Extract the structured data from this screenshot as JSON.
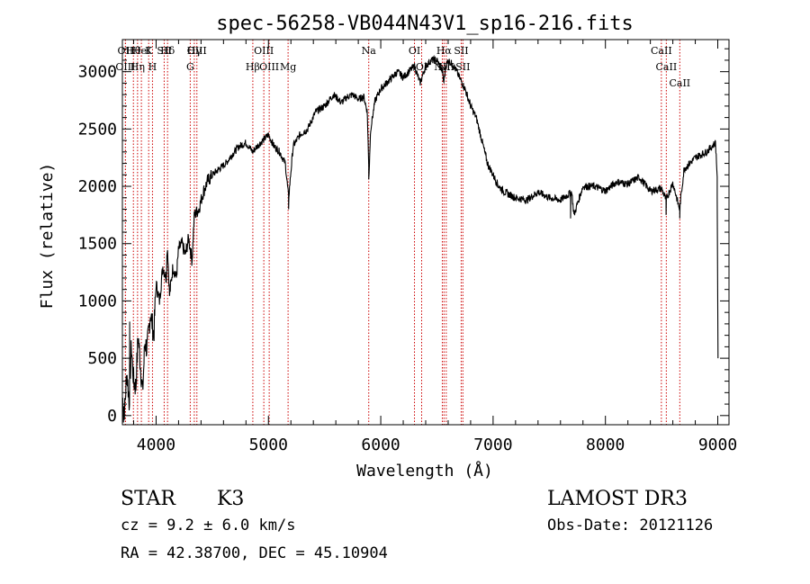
{
  "chart_data": {
    "type": "line",
    "title": "spec-56258-VB044N43V1_sp16-216.fits",
    "xlabel": "Wavelength (Å)",
    "ylabel": "Flux (relative)",
    "xlim": [
      3700,
      9100
    ],
    "ylim": [
      -80,
      3280
    ],
    "x_ticks": [
      4000,
      5000,
      6000,
      7000,
      8000,
      9000
    ],
    "x_tick_labels": [
      "4000",
      "5000",
      "6000",
      "7000",
      "8000",
      "9000"
    ],
    "y_ticks": [
      0,
      500,
      1000,
      1500,
      2000,
      2500,
      3000
    ],
    "y_tick_labels": [
      "0",
      "500",
      "1000",
      "1500",
      "2000",
      "2500",
      "3000"
    ],
    "series": [
      {
        "name": "spectrum",
        "color": "#000000",
        "x": [
          3700,
          3720,
          3740,
          3760,
          3780,
          3800,
          3820,
          3840,
          3860,
          3880,
          3900,
          3920,
          3950,
          3980,
          4000,
          4030,
          4060,
          4090,
          4100,
          4120,
          4150,
          4180,
          4200,
          4230,
          4260,
          4290,
          4320,
          4340,
          4380,
          4420,
          4460,
          4500,
          4560,
          4620,
          4680,
          4740,
          4800,
          4860,
          4900,
          4950,
          5000,
          5050,
          5100,
          5150,
          5180,
          5220,
          5280,
          5350,
          5420,
          5500,
          5580,
          5650,
          5700,
          5750,
          5800,
          5850,
          5880,
          5895,
          5910,
          5950,
          6000,
          6050,
          6100,
          6150,
          6200,
          6250,
          6300,
          6350,
          6400,
          6450,
          6500,
          6550,
          6560,
          6580,
          6600,
          6650,
          6700,
          6750,
          6800,
          6850,
          6900,
          6950,
          7000,
          7050,
          7100,
          7200,
          7300,
          7400,
          7500,
          7600,
          7700,
          7720,
          7800,
          7900,
          8000,
          8100,
          8200,
          8300,
          8400,
          8500,
          8540,
          8600,
          8660,
          8700,
          8800,
          8900,
          8980,
          9000
        ],
        "y": [
          150,
          50,
          380,
          120,
          600,
          300,
          250,
          700,
          450,
          200,
          640,
          580,
          900,
          700,
          1150,
          1000,
          1300,
          1200,
          1500,
          1050,
          1300,
          1200,
          1450,
          1500,
          1400,
          1550,
          1350,
          1750,
          1800,
          1950,
          2050,
          2100,
          2150,
          2200,
          2280,
          2350,
          2380,
          2300,
          2350,
          2400,
          2450,
          2350,
          2300,
          2200,
          1900,
          2350,
          2450,
          2500,
          2650,
          2700,
          2800,
          2730,
          2780,
          2800,
          2760,
          2780,
          2650,
          2100,
          2500,
          2750,
          2850,
          2900,
          2950,
          3000,
          2950,
          3000,
          3050,
          2900,
          3050,
          3100,
          3100,
          3000,
          2900,
          3050,
          3100,
          3050,
          2950,
          2850,
          2700,
          2600,
          2400,
          2200,
          2100,
          2000,
          1950,
          1900,
          1880,
          1950,
          1900,
          1880,
          1950,
          1750,
          2000,
          2000,
          1960,
          2040,
          2020,
          2080,
          1960,
          1980,
          1880,
          2030,
          1800,
          2150,
          2250,
          2300,
          2380,
          2000
        ],
        "spikes": [
          {
            "x": 3710,
            "y": -60
          },
          {
            "x": 3765,
            "y": 820
          },
          {
            "x": 5180,
            "y": 1800
          },
          {
            "x": 5893,
            "y": 2060
          },
          {
            "x": 7690,
            "y": 1720
          },
          {
            "x": 8540,
            "y": 1750
          },
          {
            "x": 8662,
            "y": 1720
          },
          {
            "x": 8995,
            "y": 1900
          },
          {
            "x": 9002,
            "y": 500
          }
        ]
      }
    ],
    "line_markers": {
      "color": "#cc0000",
      "lines": [
        {
          "x": 3727,
          "label": "OII",
          "row": 0
        },
        {
          "x": 3727,
          "label": "OIII",
          "row": 1
        },
        {
          "x": 3798,
          "label": "Hθ",
          "row": 0
        },
        {
          "x": 3835,
          "label": "Hη",
          "row": 1
        },
        {
          "x": 3869,
          "label": "HeI",
          "row": 0
        },
        {
          "x": 3934,
          "label": "K",
          "row": 0
        },
        {
          "x": 3968,
          "label": "H",
          "row": 1
        },
        {
          "x": 4072,
          "label": "SII",
          "row": 0
        },
        {
          "x": 4102,
          "label": "Hδ",
          "row": 0
        },
        {
          "x": 4304,
          "label": "G",
          "row": 1
        },
        {
          "x": 4340,
          "label": "Hγ",
          "row": 0
        },
        {
          "x": 4363,
          "label": "OIII",
          "row": 0
        },
        {
          "x": 4861,
          "label": "Hβ",
          "row": 1
        },
        {
          "x": 4959,
          "label": "OIII",
          "row": 0
        },
        {
          "x": 5007,
          "label": "OIII",
          "row": 1
        },
        {
          "x": 5175,
          "label": "Mg",
          "row": 1
        },
        {
          "x": 5893,
          "label": "Na",
          "row": 0
        },
        {
          "x": 6300,
          "label": "OI",
          "row": 0
        },
        {
          "x": 6364,
          "label": "OI",
          "row": 1
        },
        {
          "x": 6548,
          "label": "NII",
          "row": 1
        },
        {
          "x": 6563,
          "label": "Hα",
          "row": 0
        },
        {
          "x": 6583,
          "label": "NII",
          "row": 1
        },
        {
          "x": 6716,
          "label": "SII",
          "row": 0
        },
        {
          "x": 6731,
          "label": "SII",
          "row": 1
        },
        {
          "x": 8498,
          "label": "CaII",
          "row": 0
        },
        {
          "x": 8542,
          "label": "CaII",
          "row": 1
        },
        {
          "x": 8662,
          "label": "CaII",
          "row": 2
        }
      ]
    }
  },
  "info": {
    "class_label": "STAR",
    "subclass": "K3",
    "redshift": "cz =  9.2 ±  6.0 km/s",
    "coordinates": "RA =  42.38700, DEC =  45.10904",
    "survey": "LAMOST DR3",
    "obs_date": "Obs-Date: 20121126"
  }
}
